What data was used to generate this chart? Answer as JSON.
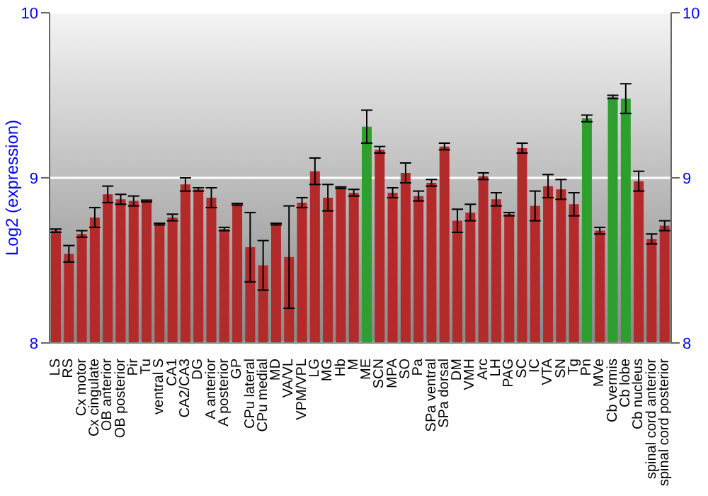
{
  "chart_data": {
    "type": "bar",
    "ylabel": "Log2 (expression)",
    "categories": [
      "LS",
      "RS",
      "Cx motor",
      "Cx cingulate",
      "OB anterior",
      "OB posterior",
      "Pir",
      "Tu",
      "ventral S",
      "CA1",
      "CA2/CA3",
      "DG",
      "A anterior",
      "A posterior",
      "GP",
      "CPu lateral",
      "CPu medial",
      "MD",
      "VA/VL",
      "VPM/VPL",
      "LG",
      "MG",
      "Hb",
      "M",
      "ME",
      "SCN",
      "MPA",
      "SO",
      "Pa",
      "SPa ventral",
      "SPa dorsal",
      "DM",
      "VMH",
      "Arc",
      "LH",
      "PAG",
      "SC",
      "IC",
      "VTA",
      "SN",
      "Tg",
      "Pn",
      "MVe",
      "Cb vermis",
      "Cb lobe",
      "Cb nucleus",
      "spinal cord anterior",
      "spinal cord posterior"
    ],
    "values": [
      8.68,
      8.54,
      8.66,
      8.76,
      8.9,
      8.87,
      8.86,
      8.86,
      8.72,
      8.76,
      8.96,
      8.93,
      8.88,
      8.69,
      8.84,
      8.58,
      8.47,
      8.72,
      8.52,
      8.85,
      9.04,
      8.88,
      8.94,
      8.91,
      9.31,
      9.17,
      8.91,
      9.03,
      8.89,
      8.97,
      9.19,
      8.74,
      8.79,
      9.01,
      8.87,
      8.78,
      9.18,
      8.83,
      8.95,
      8.93,
      8.84,
      9.36,
      8.68,
      9.49,
      9.48,
      8.98,
      8.63,
      8.71
    ],
    "errors": [
      0.01,
      0.05,
      0.02,
      0.06,
      0.05,
      0.03,
      0.03,
      0.005,
      0.005,
      0.02,
      0.04,
      0.01,
      0.06,
      0.01,
      0.005,
      0.21,
      0.15,
      0.005,
      0.31,
      0.03,
      0.08,
      0.08,
      0.005,
      0.02,
      0.1,
      0.02,
      0.03,
      0.06,
      0.03,
      0.02,
      0.02,
      0.07,
      0.05,
      0.02,
      0.04,
      0.01,
      0.03,
      0.09,
      0.07,
      0.06,
      0.07,
      0.02,
      0.02,
      0.01,
      0.09,
      0.06,
      0.03,
      0.03
    ],
    "colors": [
      "#b22a2a",
      "#b22a2a",
      "#b22a2a",
      "#b22a2a",
      "#b22a2a",
      "#b22a2a",
      "#b22a2a",
      "#b22a2a",
      "#b22a2a",
      "#b22a2a",
      "#b22a2a",
      "#b22a2a",
      "#b22a2a",
      "#b22a2a",
      "#b22a2a",
      "#b22a2a",
      "#b22a2a",
      "#b22a2a",
      "#b22a2a",
      "#b22a2a",
      "#b22a2a",
      "#b22a2a",
      "#b22a2a",
      "#b22a2a",
      "#2e9e2e",
      "#b22a2a",
      "#b22a2a",
      "#b22a2a",
      "#b22a2a",
      "#b22a2a",
      "#b22a2a",
      "#b22a2a",
      "#b22a2a",
      "#b22a2a",
      "#b22a2a",
      "#b22a2a",
      "#b22a2a",
      "#b22a2a",
      "#b22a2a",
      "#b22a2a",
      "#b22a2a",
      "#2e9e2e",
      "#b22a2a",
      "#2e9e2e",
      "#2e9e2e",
      "#b22a2a",
      "#b22a2a",
      "#b22a2a"
    ],
    "ylim": [
      8,
      10
    ],
    "yticks": [
      8,
      9,
      10
    ],
    "y2lim": [
      8,
      10
    ],
    "y2ticks": [
      8,
      9,
      10
    ],
    "grid": "y"
  }
}
